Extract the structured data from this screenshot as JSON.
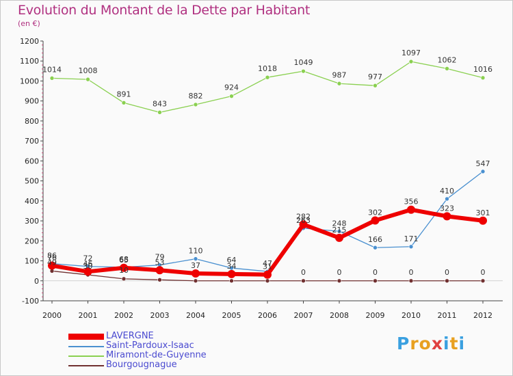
{
  "title": "Evolution du Montant de la Dette par Habitant",
  "subtitle": "(en €)",
  "logo": {
    "letters": [
      "P",
      "r",
      "o",
      "x",
      "i",
      "t",
      "i"
    ],
    "colors": [
      "#3aa0e0",
      "#e8a020",
      "#e8a020",
      "#e04040",
      "#3aa0e0",
      "#e8a020",
      "#3aa0e0"
    ]
  },
  "chart_data": {
    "type": "line",
    "title": "Evolution du Montant de la Dette par Habitant",
    "subtitle": "(en €)",
    "x": [
      "2000",
      "2001",
      "2002",
      "2003",
      "2004",
      "2005",
      "2006",
      "2007",
      "2008",
      "2009",
      "2010",
      "2011",
      "2012"
    ],
    "ylim": [
      -100,
      1200
    ],
    "yticks": [
      "-100",
      "0",
      "100",
      "200",
      "300",
      "400",
      "500",
      "600",
      "700",
      "800",
      "900",
      "1000",
      "1100",
      "1200"
    ],
    "grid": false,
    "legend_position": "bottom-left",
    "series": [
      {
        "name": "LAVERGNE",
        "color": "#ee0000",
        "values": [
          76,
          46,
          65,
          53,
          37,
          34,
          31,
          282,
          215,
          302,
          356,
          323,
          301
        ],
        "labels": [
          "76",
          "46",
          "65",
          "53",
          "37",
          "34",
          "31",
          "282",
          "215",
          "302",
          "356",
          "323",
          "301"
        ]
      },
      {
        "name": "Saint-Pardoux-Isaac",
        "color": "#4a90d0",
        "values": [
          86,
          72,
          68,
          79,
          110,
          64,
          47,
          263,
          248,
          166,
          171,
          410,
          547
        ],
        "labels": [
          "86",
          "72",
          "68",
          "79",
          "110",
          "64",
          "47",
          "263",
          "248",
          "166",
          "171",
          "410",
          "547"
        ]
      },
      {
        "name": "Miramont-de-Guyenne",
        "color": "#8ad050",
        "values": [
          1014,
          1008,
          891,
          843,
          882,
          924,
          1018,
          1049,
          987,
          977,
          1097,
          1062,
          1016
        ],
        "labels": [
          "1014",
          "1008",
          "891",
          "843",
          "882",
          "924",
          "1018",
          "1049",
          "987",
          "977",
          "1097",
          "1062",
          "1016"
        ]
      },
      {
        "name": "Bourgougnague",
        "color": "#703030",
        "values": [
          49,
          30,
          10,
          5,
          0,
          0,
          0,
          0,
          0,
          0,
          0,
          0,
          0
        ],
        "labels": [
          "49",
          "30",
          "10",
          "",
          "",
          "",
          "",
          "0",
          "0",
          "0",
          "0",
          "0",
          "0"
        ]
      }
    ]
  }
}
